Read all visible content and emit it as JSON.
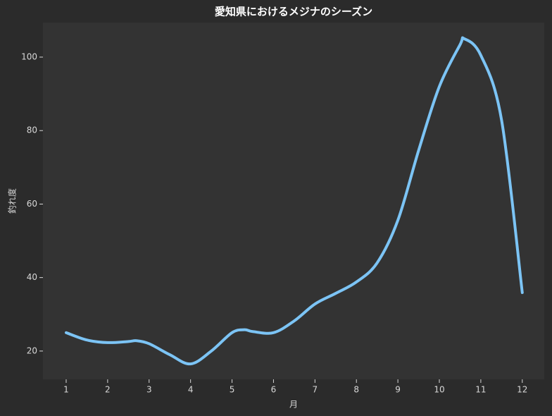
{
  "chart_data": {
    "type": "line",
    "title": "愛知県におけるメジナのシーズン",
    "x_label": "月",
    "y_label": "釣れ度",
    "x": [
      1,
      1.5,
      2,
      2.5,
      2.7,
      3,
      3.5,
      4,
      4.5,
      5,
      5.3,
      5.5,
      6,
      6.5,
      7,
      7.5,
      8,
      8.5,
      9,
      9.5,
      10,
      10.5,
      10.6,
      11,
      11.5,
      12
    ],
    "series": [
      {
        "name": "釣れ度",
        "color": "#7cc4f5",
        "values": [
          25,
          23,
          22.3,
          22.6,
          22.8,
          22,
          19,
          16.5,
          20,
          25,
          25.8,
          25.3,
          25,
          28.2,
          32.8,
          35.7,
          38.8,
          44,
          55.6,
          74.6,
          92,
          103.4,
          105,
          100.5,
          82.9,
          35.9
        ]
      }
    ],
    "xlim": [
      0.44,
      12.53
    ],
    "xticks": [
      1,
      2,
      3,
      4,
      5,
      6,
      7,
      8,
      9,
      10,
      11,
      12
    ],
    "ylim": [
      12.3,
      109.4
    ],
    "yticks": [
      20,
      40,
      60,
      80,
      100
    ],
    "grid": false,
    "legend": false
  }
}
